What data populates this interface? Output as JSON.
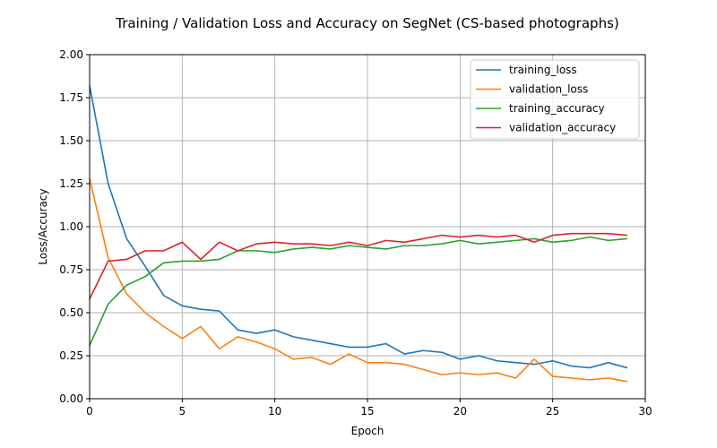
{
  "chart_data": {
    "type": "line",
    "title": "Training / Validation Loss and Accuracy on SegNet (CS-based photographs)",
    "xlabel": "Epoch",
    "ylabel": "Loss/Accuracy",
    "xlim": [
      0,
      30
    ],
    "ylim": [
      0,
      2.0
    ],
    "x_ticks": [
      0,
      5,
      10,
      15,
      20,
      25,
      30
    ],
    "y_ticks": [
      0.0,
      0.25,
      0.5,
      0.75,
      1.0,
      1.25,
      1.5,
      1.75,
      2.0
    ],
    "x_tick_labels": [
      "0",
      "5",
      "10",
      "15",
      "20",
      "25",
      "30"
    ],
    "y_tick_labels": [
      "0.00",
      "0.25",
      "0.50",
      "0.75",
      "1.00",
      "1.25",
      "1.50",
      "1.75",
      "2.00"
    ],
    "grid": true,
    "legend_position": "top-right",
    "x": [
      0,
      1,
      2,
      3,
      4,
      5,
      6,
      7,
      8,
      9,
      10,
      11,
      12,
      13,
      14,
      15,
      16,
      17,
      18,
      19,
      20,
      21,
      22,
      23,
      24,
      25,
      26,
      27,
      28,
      29
    ],
    "series": [
      {
        "name": "training_loss",
        "color": "#1f77b4",
        "values": [
          1.82,
          1.25,
          0.93,
          0.77,
          0.6,
          0.54,
          0.52,
          0.51,
          0.4,
          0.38,
          0.4,
          0.36,
          0.34,
          0.32,
          0.3,
          0.3,
          0.32,
          0.26,
          0.28,
          0.27,
          0.23,
          0.25,
          0.22,
          0.21,
          0.2,
          0.22,
          0.19,
          0.18,
          0.21,
          0.18
        ]
      },
      {
        "name": "validation_loss",
        "color": "#ff7f0e",
        "values": [
          1.28,
          0.82,
          0.61,
          0.5,
          0.42,
          0.35,
          0.42,
          0.29,
          0.36,
          0.33,
          0.29,
          0.23,
          0.24,
          0.2,
          0.26,
          0.21,
          0.21,
          0.2,
          0.17,
          0.14,
          0.15,
          0.14,
          0.15,
          0.12,
          0.23,
          0.13,
          0.12,
          0.11,
          0.12,
          0.1
        ]
      },
      {
        "name": "training_accuracy",
        "color": "#2ca02c",
        "values": [
          0.31,
          0.55,
          0.66,
          0.71,
          0.79,
          0.8,
          0.8,
          0.81,
          0.86,
          0.86,
          0.85,
          0.87,
          0.88,
          0.87,
          0.89,
          0.88,
          0.87,
          0.89,
          0.89,
          0.9,
          0.92,
          0.9,
          0.91,
          0.92,
          0.93,
          0.91,
          0.92,
          0.94,
          0.92,
          0.93
        ]
      },
      {
        "name": "validation_accuracy",
        "color": "#d62728",
        "values": [
          0.58,
          0.8,
          0.81,
          0.86,
          0.86,
          0.91,
          0.81,
          0.91,
          0.86,
          0.9,
          0.91,
          0.9,
          0.9,
          0.89,
          0.91,
          0.89,
          0.92,
          0.91,
          0.93,
          0.95,
          0.94,
          0.95,
          0.94,
          0.95,
          0.91,
          0.95,
          0.96,
          0.96,
          0.96,
          0.95
        ]
      }
    ]
  }
}
